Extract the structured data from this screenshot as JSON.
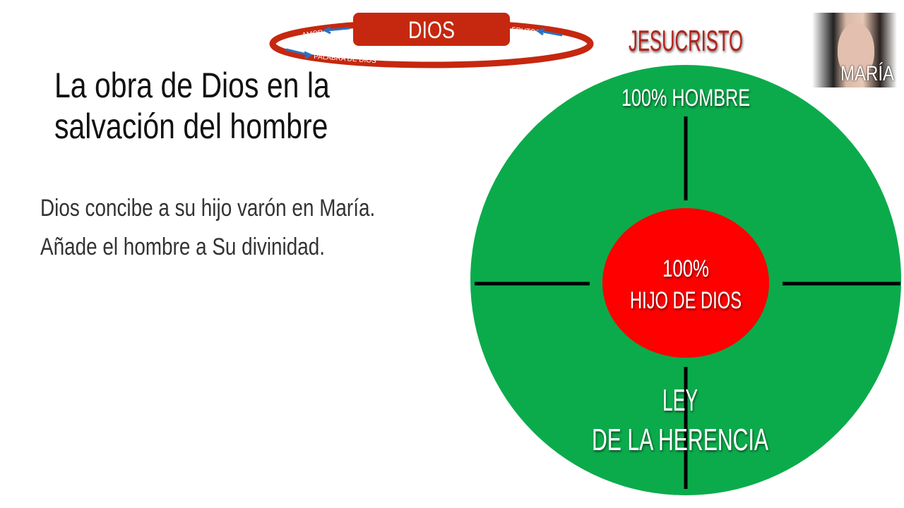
{
  "header": {
    "cycle": {
      "center": "DIOS",
      "left": "AMOR",
      "right": "FRUTOS",
      "bottom": "PALABRA DE DIOS"
    },
    "jesucristo": "JESUCRISTO",
    "photo_label": "MARÍA"
  },
  "slide": {
    "title_lines": [
      "La obra de Dios en la",
      "salvación del hombre"
    ],
    "body_lines": [
      "Dios concibe a su hijo varón en María.",
      "Añade el hombre a Su divinidad."
    ]
  },
  "diagram": {
    "outer_label": "100% HOMBRE",
    "inner_label_lines": [
      "100%",
      "HIJO DE DIOS"
    ],
    "bottom_label_lines": [
      "LEY",
      "DE LA HERENCIA"
    ],
    "colors": {
      "outer": "#0bab4b",
      "inner": "#fe0000",
      "cycle": "#c5280f",
      "jesucristo": "#b3201b"
    }
  }
}
